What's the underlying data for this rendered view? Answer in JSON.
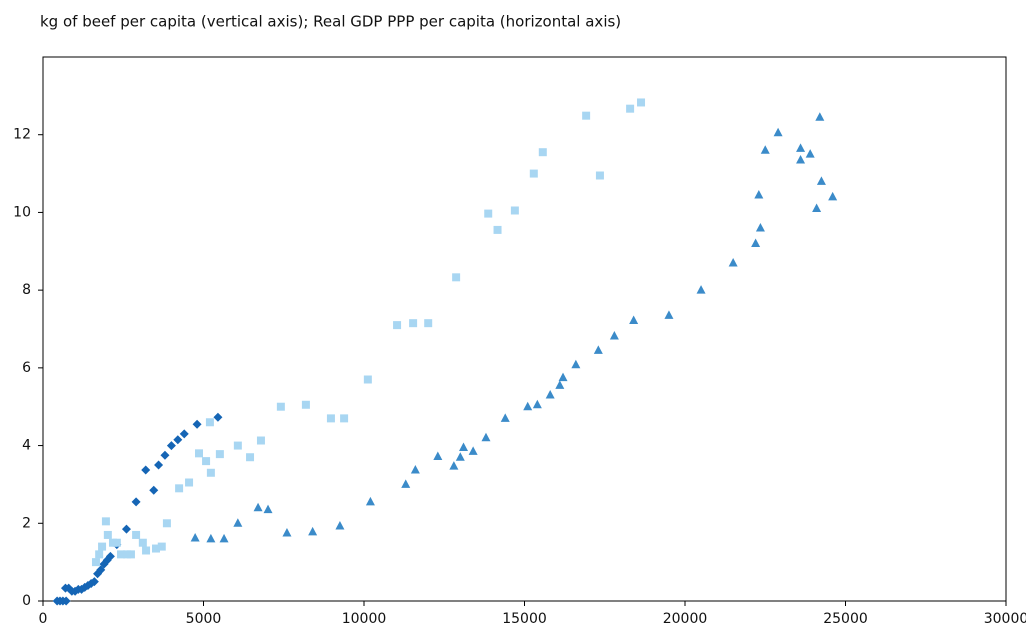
{
  "chart_data": {
    "type": "scatter",
    "title": "kg of beef per capita (vertical axis); Real GDP PPP per capita (horizontal axis)",
    "xlim": [
      0,
      30000
    ],
    "xticks": [
      0,
      5000,
      10000,
      15000,
      20000,
      25000,
      30000
    ],
    "ylim": [
      0,
      14
    ],
    "yticks": [
      0,
      2,
      4,
      6,
      8,
      10,
      12
    ],
    "series": [
      {
        "color": "#1565b5",
        "marker": "diamond",
        "x": [
          440,
          530,
          620,
          720,
          700,
          800,
          900,
          1000,
          1100,
          1200,
          1300,
          1400,
          1500,
          1600,
          1700,
          1800,
          1900,
          2000,
          2100,
          2300,
          2600,
          2900,
          3200,
          3450,
          3600,
          3800,
          4000,
          4200,
          4400,
          4800,
          5450
        ],
        "values": [
          0,
          0,
          0,
          0,
          0.33,
          0.33,
          0.25,
          0.25,
          0.3,
          0.3,
          0.35,
          0.4,
          0.45,
          0.5,
          0.7,
          0.8,
          0.95,
          1.05,
          1.15,
          1.45,
          1.85,
          2.55,
          3.37,
          2.85,
          3.5,
          3.75,
          4.0,
          4.15,
          4.3,
          4.55,
          4.73
        ]
      },
      {
        "color": "#a8d6f2",
        "marker": "square",
        "x": [
          1650,
          1750,
          1840,
          1960,
          2020,
          2180,
          2300,
          2430,
          2620,
          2740,
          2900,
          3110,
          3210,
          3520,
          3700,
          3860,
          4240,
          4550,
          4860,
          5080,
          5230,
          5200,
          5510,
          6070,
          6450,
          6790,
          7410,
          8190,
          8970,
          9380,
          10120,
          11030,
          11530,
          12000,
          12870,
          13870,
          14160,
          14700,
          15290,
          15570,
          16920,
          17350,
          18290,
          18630
        ],
        "values": [
          1.0,
          1.2,
          1.4,
          2.05,
          1.7,
          1.5,
          1.5,
          1.2,
          1.2,
          1.2,
          1.7,
          1.5,
          1.3,
          1.35,
          1.4,
          2.0,
          2.9,
          3.05,
          3.8,
          3.6,
          3.3,
          4.6,
          3.78,
          4.0,
          3.7,
          4.13,
          5.0,
          5.05,
          4.7,
          4.7,
          5.7,
          7.1,
          7.15,
          7.15,
          8.33,
          9.97,
          9.55,
          10.05,
          11.0,
          11.55,
          12.49,
          10.95,
          12.67,
          12.83
        ]
      },
      {
        "color": "#3b8bc9",
        "marker": "triangle",
        "x": [
          4740,
          5230,
          5640,
          6070,
          6700,
          7010,
          7600,
          8400,
          9250,
          10200,
          11300,
          11600,
          12300,
          12800,
          13000,
          13100,
          13400,
          13800,
          14400,
          15100,
          15400,
          15800,
          16100,
          16200,
          16600,
          17300,
          17800,
          18400,
          19500,
          20500,
          21500,
          22200,
          22300,
          22350,
          22500,
          22900,
          23600,
          23600,
          23900,
          24100,
          24200,
          24250,
          24600
        ],
        "values": [
          1.62,
          1.6,
          1.6,
          2.0,
          2.4,
          2.35,
          1.75,
          1.78,
          1.93,
          2.55,
          3.0,
          3.37,
          3.72,
          3.47,
          3.7,
          3.95,
          3.85,
          4.2,
          4.7,
          5.0,
          5.05,
          5.3,
          5.55,
          5.75,
          6.08,
          6.45,
          6.82,
          7.22,
          7.35,
          8.0,
          8.7,
          9.2,
          10.45,
          9.6,
          11.6,
          12.05,
          11.65,
          11.35,
          11.5,
          10.1,
          12.45,
          10.8,
          10.4
        ]
      }
    ]
  }
}
